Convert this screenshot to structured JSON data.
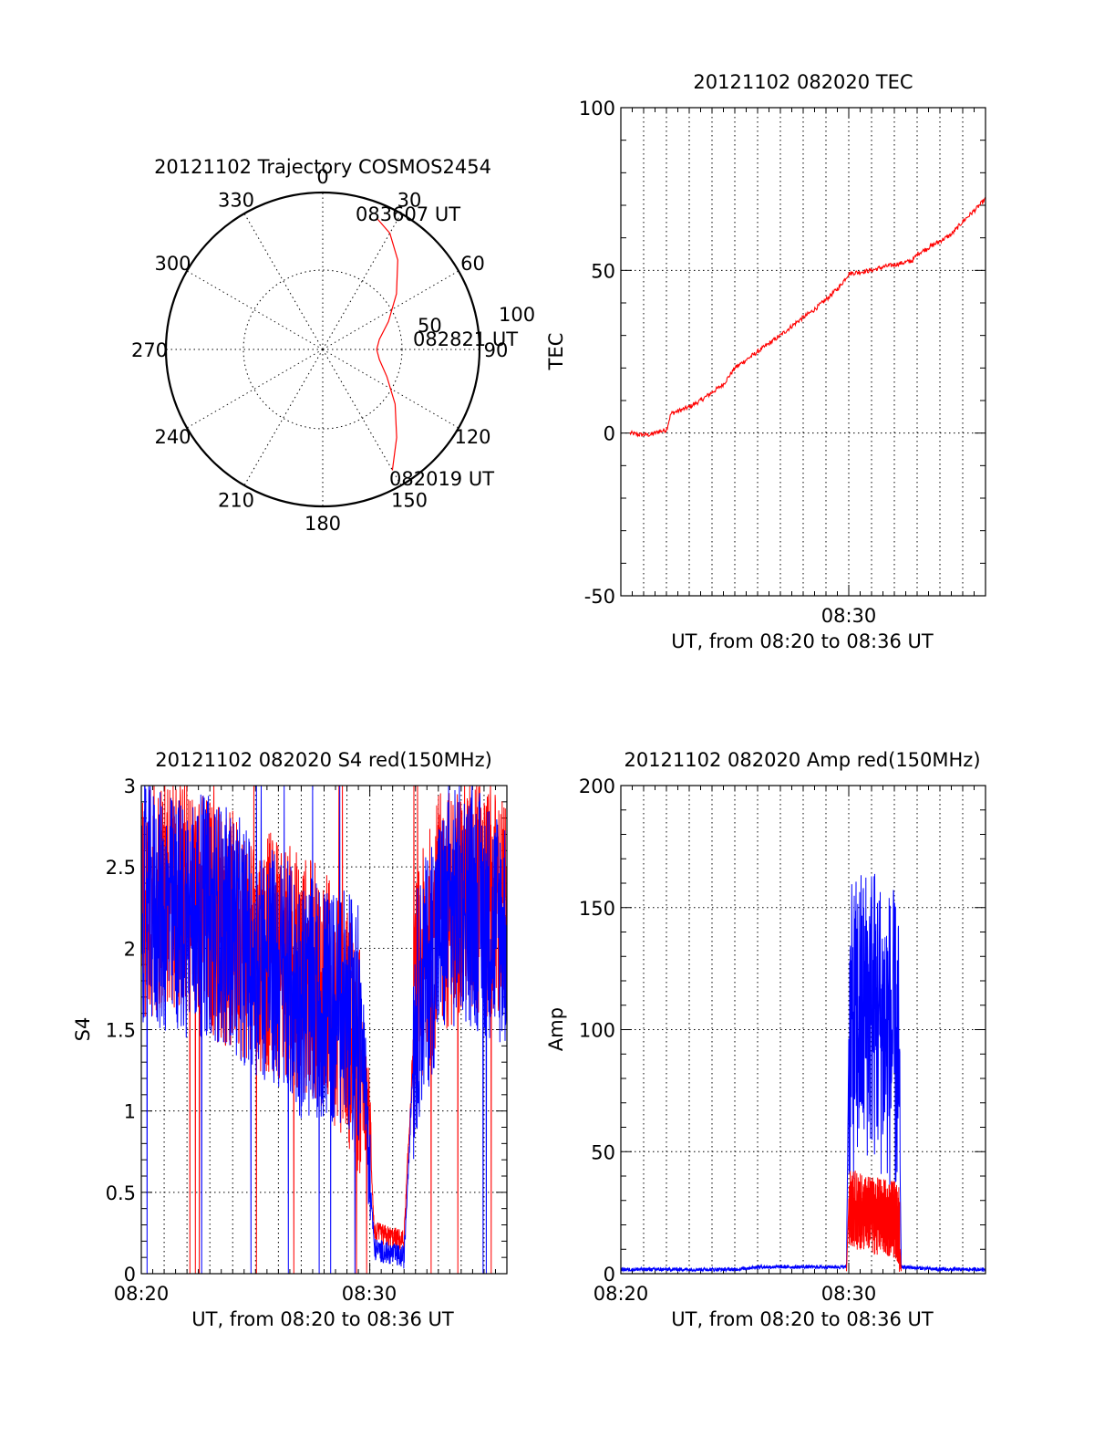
{
  "colors": {
    "red": "#ff0000",
    "blue": "#0000ff",
    "axis": "#000000"
  },
  "chart_data": [
    {
      "type": "polar",
      "title": "20121102 Trajectory COSMOS2454",
      "angle_labels": [
        "0",
        "30",
        "60",
        "90",
        "120",
        "150",
        "180",
        "210",
        "240",
        "270",
        "300",
        "330"
      ],
      "radius_labels": [
        "50",
        "100"
      ],
      "start_label": "082019 UT",
      "mid_label": "082821 UT",
      "end_label": "083607 UT",
      "trajectory": {
        "azimuth": [
          150,
          140,
          127,
          113,
          100,
          90,
          80,
          67,
          53,
          40,
          30,
          23
        ],
        "elevation": [
          10,
          24,
          38,
          50,
          57,
          59,
          57,
          49,
          37,
          23,
          13,
          9
        ]
      }
    },
    {
      "type": "line",
      "title": "20121102 082020 TEC",
      "ylabel": "TEC",
      "xlabel": "UT, from 08:20 to 08:36 UT",
      "xlim": [
        0,
        16
      ],
      "ylim": [
        -50,
        100
      ],
      "yticks": [
        "100",
        "50",
        "0",
        "-50"
      ],
      "xticks": [
        "08:30"
      ],
      "series": [
        {
          "color": "#ff0000",
          "x": [
            0.4,
            0.8,
            1.3,
            1.7,
            2.0,
            2.2,
            3.0,
            3.5,
            4.5,
            5.0,
            6.0,
            7.0,
            7.7,
            8.5,
            9.0,
            9.6,
            10.0,
            10.5,
            11.0,
            11.5,
            12.5,
            12.8,
            13.0,
            14.5,
            15.0,
            15.6,
            16.0
          ],
          "y": [
            0,
            -0.5,
            -0.5,
            0.5,
            1,
            6,
            8,
            10,
            15,
            20,
            25,
            30,
            34,
            38,
            41,
            45,
            49,
            49.5,
            50,
            51,
            52.5,
            53,
            55,
            61,
            65,
            69,
            72
          ]
        }
      ]
    },
    {
      "type": "line",
      "title": "20121102 082020 S4 red(150MHz)",
      "ylabel": "S4",
      "xlabel": "UT, from 08:20 to 08:36 UT",
      "xlim": [
        0,
        16
      ],
      "ylim": [
        0,
        3
      ],
      "yticks": [
        "3",
        "2.5",
        "2",
        "1.5",
        "1",
        "0.5",
        "0"
      ],
      "xticks": [
        "08:20",
        "08:30"
      ],
      "series": [
        {
          "color": "#ff0000",
          "x": [
            0,
            1,
            2,
            3,
            4,
            5,
            6,
            7,
            8,
            9,
            9.7,
            10,
            10.2,
            11,
            11.5,
            12,
            13,
            14,
            15,
            16
          ],
          "y": [
            2.2,
            2.4,
            2.3,
            2.2,
            2.1,
            2.0,
            1.95,
            1.85,
            1.75,
            1.55,
            1.2,
            0.9,
            0.25,
            0.22,
            0.2,
            1.7,
            2.2,
            2.3,
            2.3,
            2.2
          ]
        },
        {
          "color": "#0000ff",
          "x": [
            0,
            1,
            2,
            3,
            4,
            5,
            6,
            7,
            8,
            9,
            9.7,
            10,
            10.2,
            11,
            11.5,
            12,
            13,
            14,
            15,
            16
          ],
          "y": [
            2.3,
            2.2,
            2.2,
            2.2,
            2.1,
            1.95,
            1.85,
            1.7,
            1.65,
            1.6,
            1.5,
            0.6,
            0.15,
            0.12,
            0.1,
            1.6,
            2.1,
            2.3,
            2.2,
            2.1
          ]
        }
      ]
    },
    {
      "type": "line",
      "title": "20121102 082020 Amp red(150MHz)",
      "ylabel": "Amp",
      "xlabel": "UT, from 08:20 to 08:36 UT",
      "xlim": [
        0,
        16
      ],
      "ylim": [
        0,
        200
      ],
      "yticks": [
        "200",
        "150",
        "100",
        "50",
        "0"
      ],
      "xticks": [
        "08:20",
        "08:30"
      ],
      "series": [
        {
          "color": "#0000ff",
          "x": [
            0,
            5,
            6,
            9.9,
            10.0,
            10.5,
            11.0,
            11.5,
            12.0,
            12.2,
            12.3,
            14,
            16
          ],
          "y": [
            1,
            1,
            2,
            2,
            95,
            105,
            110,
            100,
            95,
            85,
            2,
            1,
            1
          ]
        },
        {
          "color": "#ff0000",
          "x": [
            9.9,
            10.0,
            10.5,
            11.0,
            11.5,
            12.0,
            12.2,
            12.3
          ],
          "y": [
            1,
            28,
            25,
            24,
            23,
            22,
            20,
            1
          ]
        }
      ]
    }
  ]
}
